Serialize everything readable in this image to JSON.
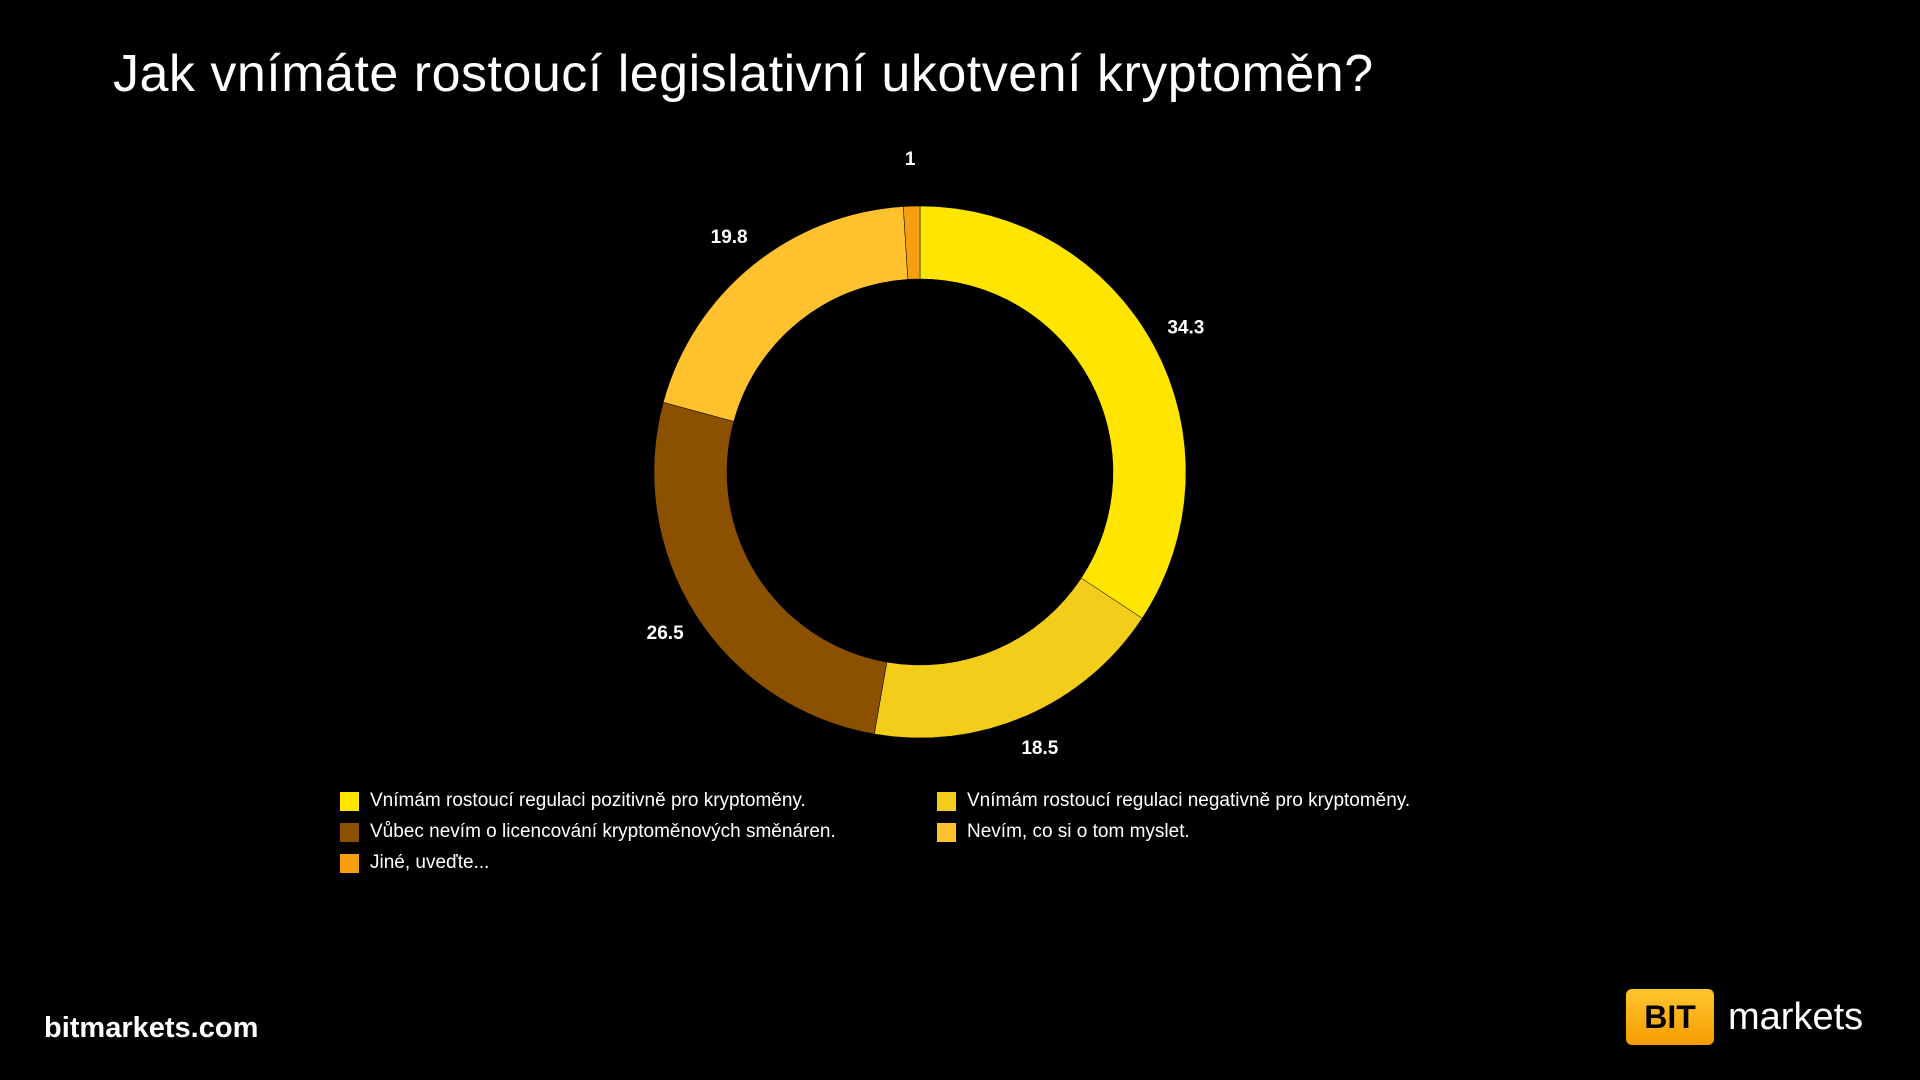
{
  "chart_data": {
    "type": "pie",
    "donut": true,
    "title": "Jak vnímáte rostoucí legislativní ukotvení kryptoměn?",
    "categories": [
      "Vnímám rostoucí regulaci pozitivně pro kryptoměny.",
      "Vnímám rostoucí regulaci negativně pro kryptoměny.",
      "Vůbec nevím o licencování kryptoměnových směnáren.",
      "Nevím, co si o tom myslet.",
      "Jiné, uveďte..."
    ],
    "values": [
      34.3,
      18.5,
      26.5,
      19.8,
      1
    ],
    "labels": [
      "34.3",
      "18.5",
      "26.5",
      "19.8",
      "1"
    ],
    "colors": [
      "#FFE500",
      "#F2CD1A",
      "#8B5000",
      "#FFC12E",
      "#F7A00F"
    ],
    "legend_placement": "bottom"
  },
  "footer": {
    "site": "bitmarkets.com",
    "logo_box": "BIT",
    "logo_text": "markets"
  }
}
